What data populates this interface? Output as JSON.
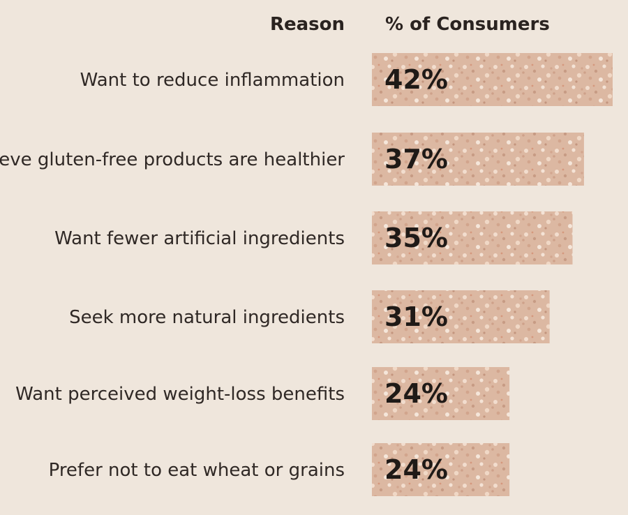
{
  "chart_data": {
    "type": "bar",
    "orientation": "horizontal",
    "column_headers": {
      "category": "Reason",
      "value": "% of Consumers"
    },
    "categories": [
      "Want to reduce inflammation",
      "Believe gluten-free products are healthier",
      "Want fewer artificial ingredients",
      "Seek more natural ingredients",
      "Want perceived weight-loss benefits",
      "Prefer not to eat wheat or grains"
    ],
    "values": [
      42,
      37,
      35,
      31,
      24,
      24
    ],
    "value_labels": [
      "42%",
      "37%",
      "35%",
      "31%",
      "24%",
      "24%"
    ],
    "unit": "%",
    "xlim": [
      0,
      42
    ],
    "grid": false,
    "legend": "none",
    "colors": {
      "background": "#efe6dc",
      "bar_base": "#dcb8a2",
      "bar_crumb": "#f2ddce",
      "bar_pore": "#b5836b",
      "text": "#2a2320"
    }
  }
}
